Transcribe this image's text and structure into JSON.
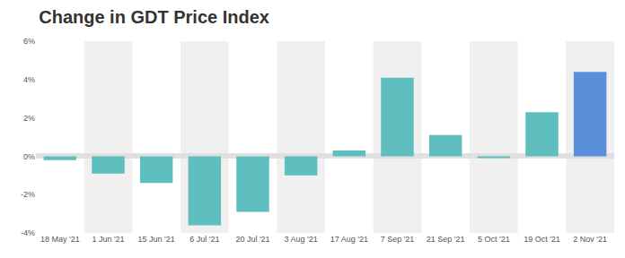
{
  "chart_data": {
    "type": "bar",
    "title": "Change in GDT Price Index",
    "categories": [
      "18 May '21",
      "1 Jun '21",
      "15 Jun '21",
      "6 Jul '21",
      "20 Jul '21",
      "3 Aug '21",
      "17 Aug '21",
      "7 Sep '21",
      "21 Sep '21",
      "5 Oct '21",
      "19 Oct '21",
      "2 Nov '21"
    ],
    "values": [
      -0.2,
      -0.9,
      -1.4,
      -3.6,
      -2.9,
      -1.0,
      0.3,
      4.1,
      1.1,
      -0.1,
      2.3,
      4.4
    ],
    "colors": [
      "#5fbfbf",
      "#5fbfbf",
      "#5fbfbf",
      "#5fbfbf",
      "#5fbfbf",
      "#5fbfbf",
      "#5fbfbf",
      "#5fbfbf",
      "#5fbfbf",
      "#5fbfbf",
      "#5fbfbf",
      "#5b8fd9"
    ],
    "ylim": [
      -4,
      6
    ],
    "yticks": [
      {
        "value": -4,
        "label": "-4%"
      },
      {
        "value": -2,
        "label": "-2%"
      },
      {
        "value": 0,
        "label": "0%"
      },
      {
        "value": 2,
        "label": "2%"
      },
      {
        "value": 4,
        "label": "4%"
      },
      {
        "value": 6,
        "label": "6%"
      }
    ],
    "grid": false
  }
}
